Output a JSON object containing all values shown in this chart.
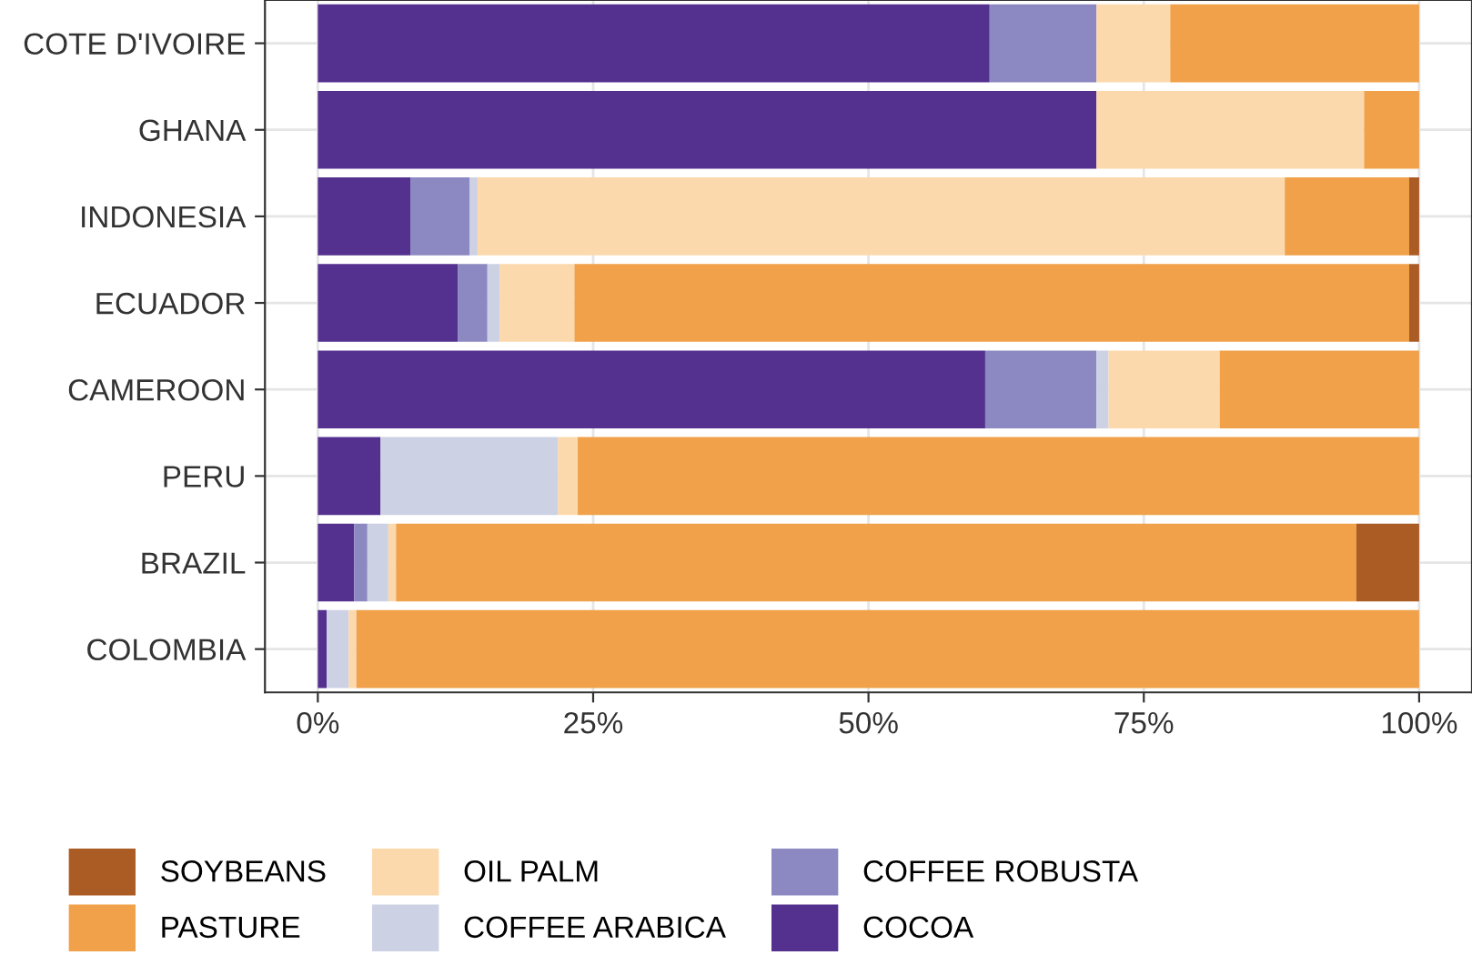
{
  "chart_data": {
    "type": "bar",
    "orientation": "horizontal",
    "stacked": true,
    "categories": [
      "COTE D'IVOIRE",
      "GHANA",
      "INDONESIA",
      "ECUADOR",
      "CAMEROON",
      "PERU",
      "BRAZIL",
      "COLOMBIA"
    ],
    "series": [
      {
        "name": "COCOA",
        "color": "#54308f",
        "values": [
          61.0,
          70.7,
          8.4,
          12.7,
          60.6,
          5.7,
          3.3,
          0.8
        ]
      },
      {
        "name": "COFFEE ROBUSTA",
        "color": "#8c88c1",
        "values": [
          9.7,
          0,
          5.4,
          2.7,
          10.1,
          0,
          1.2,
          0
        ]
      },
      {
        "name": "COFFEE ARABICA",
        "color": "#cdd1e4",
        "values": [
          0,
          0,
          0.7,
          1.1,
          1.1,
          16.1,
          1.9,
          2.0
        ]
      },
      {
        "name": "OIL PALM",
        "color": "#fcd9ac",
        "values": [
          6.7,
          24.3,
          73.3,
          6.8,
          10.1,
          1.8,
          0.7,
          0.7
        ]
      },
      {
        "name": "PASTURE",
        "color": "#f0a149",
        "values": [
          22.6,
          5.0,
          11.3,
          75.8,
          18.1,
          76.4,
          87.2,
          96.5
        ]
      },
      {
        "name": "SOYBEANS",
        "color": "#ab5b24",
        "values": [
          0,
          0,
          0.9,
          0.9,
          0,
          0,
          5.7,
          0
        ]
      }
    ],
    "xlim": [
      -4.8,
      104.8
    ],
    "xticks": [
      {
        "value": 0,
        "label": "0%"
      },
      {
        "value": 25,
        "label": "25%"
      },
      {
        "value": 50,
        "label": "50%"
      },
      {
        "value": 75,
        "label": "75%"
      },
      {
        "value": 100,
        "label": "100%"
      }
    ],
    "grid": true,
    "legend": "bottom"
  }
}
